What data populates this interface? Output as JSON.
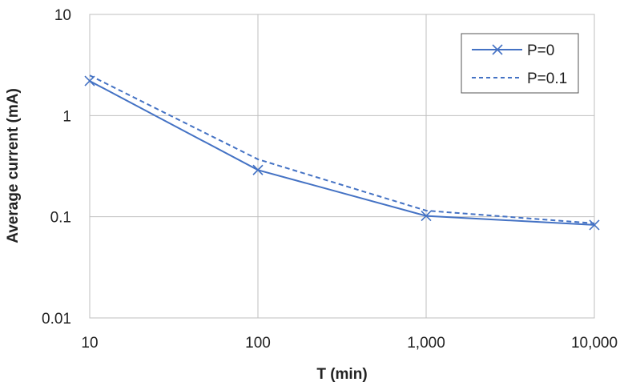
{
  "chart_data": {
    "type": "line",
    "xlabel": "T (min)",
    "ylabel": "Average current (mA)",
    "x_scale": "log",
    "y_scale": "log",
    "xlim": [
      10,
      10000
    ],
    "ylim": [
      0.01,
      10
    ],
    "x_ticks": [
      "10",
      "100",
      "1,000",
      "10,000"
    ],
    "y_ticks": [
      "10",
      "1",
      "0.1",
      "0.01"
    ],
    "grid": true,
    "legend_position": "top-right",
    "x": [
      10,
      100,
      1000,
      10000
    ],
    "series": [
      {
        "name": "P=0",
        "values": [
          2.2,
          0.29,
          0.102,
          0.083
        ],
        "style": "solid",
        "marker": "x",
        "color": "#4472C4"
      },
      {
        "name": "P=0.1",
        "values": [
          2.5,
          0.37,
          0.115,
          0.086
        ],
        "style": "dashed",
        "marker": "none",
        "color": "#4472C4"
      }
    ]
  }
}
